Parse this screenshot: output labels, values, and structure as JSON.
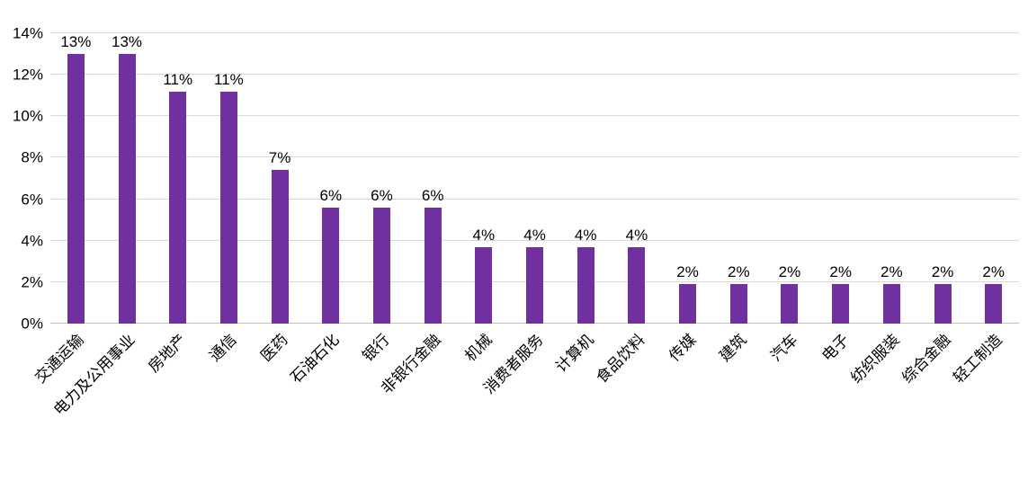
{
  "chart_data": {
    "type": "bar",
    "title": "",
    "xlabel": "",
    "ylabel": "",
    "categories": [
      "交通运输",
      "电力及公用事业",
      "房地产",
      "通信",
      "医药",
      "石油石化",
      "银行",
      "非银行金融",
      "机械",
      "消费者服务",
      "计算机",
      "食品饮料",
      "传媒",
      "建筑",
      "汽车",
      "电子",
      "纺织服装",
      "综合金融",
      "轻工制造"
    ],
    "values": [
      13.0,
      13.0,
      11.2,
      11.2,
      7.4,
      5.6,
      5.6,
      5.6,
      3.7,
      3.7,
      3.7,
      3.7,
      1.9,
      1.9,
      1.9,
      1.9,
      1.9,
      1.9,
      1.9
    ],
    "data_labels": [
      "13%",
      "13%",
      "11%",
      "11%",
      "7%",
      "6%",
      "6%",
      "6%",
      "4%",
      "4%",
      "4%",
      "4%",
      "2%",
      "2%",
      "2%",
      "2%",
      "2%",
      "2%",
      "2%"
    ],
    "ylim": [
      0,
      14
    ],
    "y_tick_step": 2,
    "y_tick_labels": [
      "0%",
      "2%",
      "4%",
      "6%",
      "8%",
      "10%",
      "12%",
      "14%"
    ],
    "grid": true,
    "legend": false,
    "x_label_rotation_deg": 45,
    "bar_color": "#7030A0",
    "gridline_color": "#D9D9D9",
    "axis_line_color": "#BFBFBF",
    "text_color": "#000000"
  }
}
